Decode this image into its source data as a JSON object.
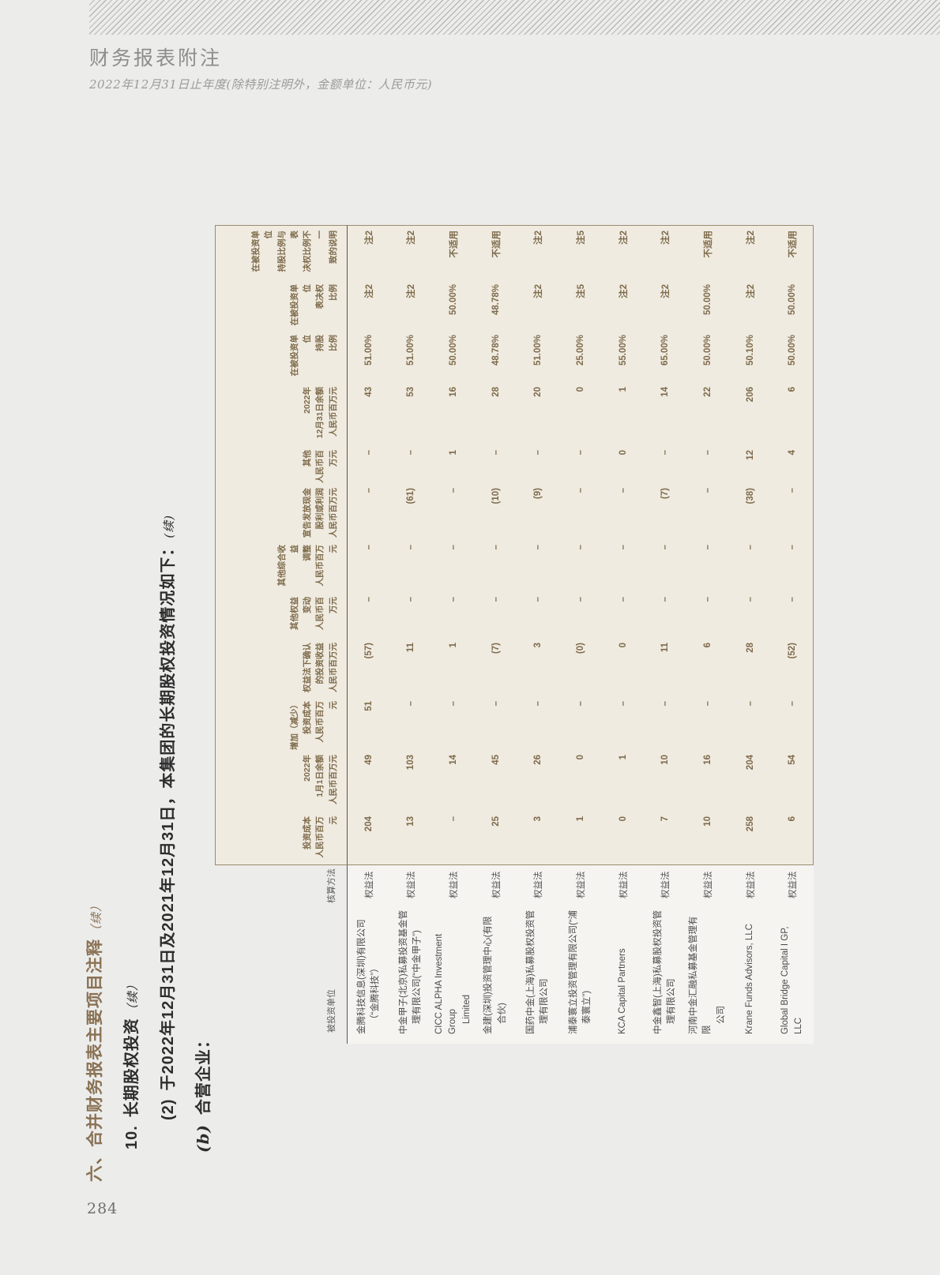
{
  "page": {
    "header": {
      "title": "财务报表附注",
      "subtitle": "2022年12月31日止年度(除特别注明外，金额单位：人民币元)"
    },
    "page_number": "284"
  },
  "side_headings": {
    "h1": {
      "num": "六、",
      "text": "合并财务报表主要项目注释",
      "cont": "（续）"
    },
    "h2": {
      "num": "10.",
      "text": "长期股权投资",
      "cont": "（续）"
    },
    "h3": {
      "num": "(2)",
      "text": "于2022年12月31日及2021年12月31日，本集团的长期股权投资情况如下：",
      "cont": "(续)"
    },
    "h4": {
      "num": "(b)",
      "text": "合营企业："
    }
  },
  "table": {
    "columns": [
      {
        "key": "name",
        "lines": [
          "被投资单位"
        ]
      },
      {
        "key": "method",
        "lines": [
          "核算方法"
        ]
      },
      {
        "key": "cost",
        "lines": [
          "投资成本",
          "人民币百万元"
        ]
      },
      {
        "key": "open_bal",
        "lines": [
          "2022年",
          "1月1日余额",
          "人民币百万元"
        ]
      },
      {
        "key": "add_cost",
        "lines": [
          "增加（减少）",
          "投资成本",
          "人民币百万元"
        ]
      },
      {
        "key": "eq_income",
        "lines": [
          "权益法下确认",
          "的投资收益",
          "人民币百万元"
        ]
      },
      {
        "key": "oth_eq",
        "lines": [
          "其他权益变动",
          "人民币百万元"
        ]
      },
      {
        "key": "oci_adj",
        "lines": [
          "其他综合收益",
          "调整",
          "人民币百万元"
        ]
      },
      {
        "key": "dividend",
        "lines": [
          "宣告发放现金",
          "股利或利润",
          "人民币百万元"
        ]
      },
      {
        "key": "other",
        "lines": [
          "其他",
          "人民币百万元"
        ]
      },
      {
        "key": "close_bal",
        "lines": [
          "2022年",
          "12月31日余额",
          "人民币百万元"
        ]
      },
      {
        "key": "share_pct",
        "lines": [
          "在被投资单位",
          "持股",
          "比例"
        ]
      },
      {
        "key": "vote_pct",
        "lines": [
          "在被投资单位",
          "表决权",
          "比例"
        ]
      },
      {
        "key": "note",
        "lines": [
          "在被投资单位",
          "持股比例与表",
          "决权比例不一",
          "致的说明"
        ]
      }
    ],
    "rows": [
      {
        "name_lines": [
          "金腾科技信息(深圳)有限公司",
          "（“金腾科技”）"
        ],
        "method": "权益法",
        "values": [
          "204",
          "49",
          "51",
          "(57)",
          "–",
          "–",
          "–",
          "–",
          "43",
          "51.00%",
          "注2",
          "注2"
        ]
      },
      {
        "name_lines": [
          "中金甲子(北京)私募投资基金管",
          "理有限公司(“中金甲子”)"
        ],
        "method": "权益法",
        "values": [
          "13",
          "103",
          "–",
          "11",
          "–",
          "–",
          "(61)",
          "–",
          "53",
          "51.00%",
          "注2",
          "注2"
        ]
      },
      {
        "name_lines": [
          "CICC ALPHA Investment Group",
          "Limited"
        ],
        "method": "权益法",
        "values": [
          "–",
          "14",
          "–",
          "1",
          "–",
          "–",
          "–",
          "1",
          "16",
          "50.00%",
          "50.00%",
          "不适用"
        ]
      },
      {
        "name_lines": [
          "金建(深圳)投资管理中心(有限",
          "合伙)"
        ],
        "method": "权益法",
        "values": [
          "25",
          "45",
          "–",
          "(7)",
          "–",
          "–",
          "(10)",
          "–",
          "28",
          "48.78%",
          "48.78%",
          "不适用"
        ]
      },
      {
        "name_lines": [
          "国药中金(上海)私募股权投资管",
          "理有限公司"
        ],
        "method": "权益法",
        "values": [
          "3",
          "26",
          "–",
          "3",
          "–",
          "–",
          "(9)",
          "–",
          "20",
          "51.00%",
          "注2",
          "注2"
        ]
      },
      {
        "name_lines": [
          "浦泰寰立投资管理有限公司(“浦",
          "泰寰立”)"
        ],
        "method": "权益法",
        "values": [
          "1",
          "0",
          "–",
          "(0)",
          "–",
          "–",
          "–",
          "–",
          "0",
          "25.00%",
          "注5",
          "注5"
        ]
      },
      {
        "name_lines": [
          "KCA Capital Partners"
        ],
        "method": "权益法",
        "values": [
          "0",
          "1",
          "–",
          "0",
          "–",
          "–",
          "–",
          "0",
          "1",
          "55.00%",
          "注2",
          "注2"
        ]
      },
      {
        "name_lines": [
          "中金鑫智(上海)私募股权投资管",
          "理有限公司"
        ],
        "method": "权益法",
        "values": [
          "7",
          "10",
          "–",
          "11",
          "–",
          "–",
          "(7)",
          "–",
          "14",
          "65.00%",
          "注2",
          "注2"
        ]
      },
      {
        "name_lines": [
          "河南中金汇融私募基金管理有限",
          "公司"
        ],
        "method": "权益法",
        "values": [
          "10",
          "16",
          "–",
          "6",
          "–",
          "–",
          "–",
          "–",
          "22",
          "50.00%",
          "50.00%",
          "不适用"
        ]
      },
      {
        "name_lines": [
          "Krane Funds Advisors, LLC"
        ],
        "method": "权益法",
        "values": [
          "258",
          "204",
          "–",
          "28",
          "–",
          "–",
          "(38)",
          "12",
          "206",
          "50.10%",
          "注2",
          "注2"
        ]
      },
      {
        "name_lines": [
          "Global Bridge Capital I GP, LLC"
        ],
        "method": "权益法",
        "values": [
          "6",
          "54",
          "–",
          "(52)",
          "–",
          "–",
          "–",
          "4",
          "6",
          "50.00%",
          "50.00%",
          "不适用"
        ]
      }
    ]
  },
  "colors": {
    "accent_gold": "#8a7254",
    "table_text": "#7d6a4b",
    "table_panel": "#f0ebe0",
    "panel_border": "#9a8c6d",
    "page_bg": "#ececeb"
  }
}
